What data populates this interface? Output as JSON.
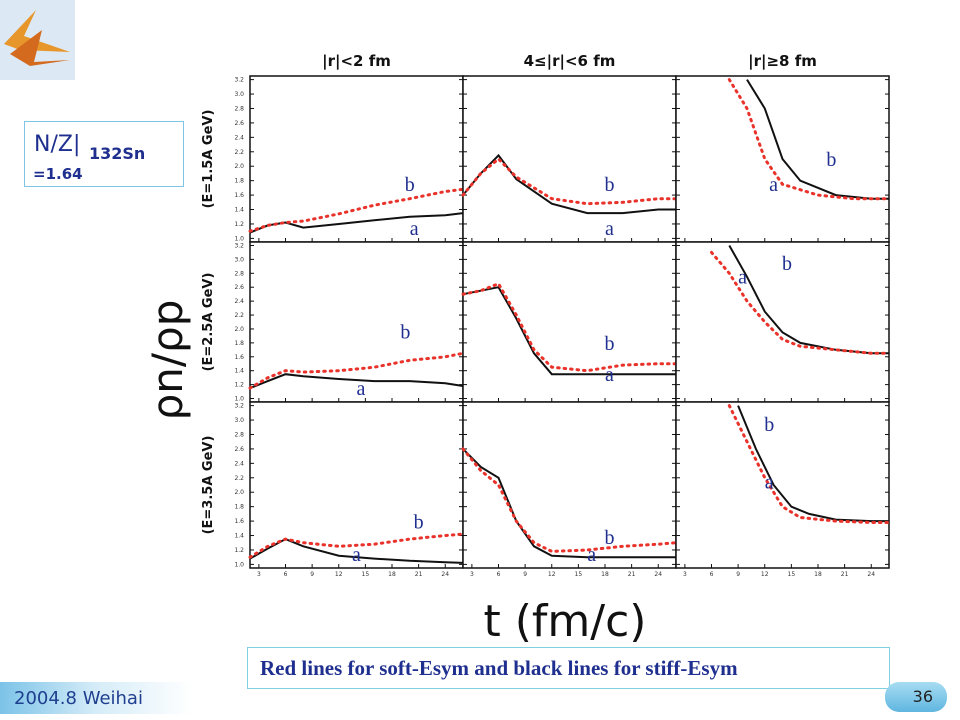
{
  "logo": {
    "name": "institution-logo"
  },
  "nz_box": {
    "main": "N/Z|",
    "sub": "132Sn",
    "value": "=1.64"
  },
  "caption": "Red lines for soft-Esym and black lines for stiff-Esym",
  "footer": {
    "left": "2004.8 Weihai",
    "page": "36"
  },
  "chart_data": {
    "type": "line",
    "ylabel": "ρn/ρp",
    "xlabel": "t (fm/c)",
    "column_titles": [
      "|r|<2 fm",
      "4≤|r|<6 fm",
      "|r|≥8 fm"
    ],
    "row_titles": [
      "(E=1.5A GeV)",
      "(E=2.5A GeV)",
      "(E=3.5A GeV)"
    ],
    "xticks": [
      3,
      6,
      9,
      12,
      15,
      18,
      21,
      24
    ],
    "yticks": [
      1.0,
      1.2,
      1.4,
      1.6,
      1.8,
      2.0,
      2.2,
      2.4,
      2.6,
      2.8,
      3.0,
      3.2
    ],
    "xlim": [
      2,
      26
    ],
    "ylim": [
      0.95,
      3.25
    ],
    "colors": {
      "soft": "#e8322a",
      "stiff": "#111111"
    },
    "legend": {
      "soft": "Red lines for soft-Esym",
      "stiff": "black lines for stiff-Esym"
    },
    "panels": [
      {
        "row": 0,
        "col": 0,
        "labels": [
          {
            "text": "b",
            "x": 20,
            "y": 1.66
          },
          {
            "text": "a",
            "x": 20.5,
            "y": 1.05
          }
        ],
        "soft": {
          "x": [
            2,
            4,
            6,
            8,
            12,
            16,
            20,
            24,
            26
          ],
          "y": [
            1.1,
            1.18,
            1.22,
            1.24,
            1.34,
            1.46,
            1.55,
            1.65,
            1.68
          ]
        },
        "stiff": {
          "x": [
            2,
            4,
            6,
            8,
            12,
            16,
            20,
            24,
            26
          ],
          "y": [
            1.08,
            1.18,
            1.22,
            1.15,
            1.2,
            1.25,
            1.3,
            1.32,
            1.35
          ]
        }
      },
      {
        "row": 0,
        "col": 1,
        "labels": [
          {
            "text": "b",
            "x": 18.5,
            "y": 1.66
          },
          {
            "text": "a",
            "x": 18.5,
            "y": 1.05
          }
        ],
        "soft": {
          "x": [
            2,
            4,
            6,
            8,
            12,
            16,
            20,
            24,
            26
          ],
          "y": [
            1.6,
            1.9,
            2.1,
            1.85,
            1.55,
            1.48,
            1.5,
            1.55,
            1.55
          ]
        },
        "stiff": {
          "x": [
            2,
            4,
            6,
            8,
            12,
            16,
            20,
            24,
            26
          ],
          "y": [
            1.6,
            1.9,
            2.15,
            1.82,
            1.48,
            1.35,
            1.35,
            1.4,
            1.4
          ]
        }
      },
      {
        "row": 0,
        "col": 2,
        "labels": [
          {
            "text": "b",
            "x": 19.5,
            "y": 2.0
          },
          {
            "text": "a",
            "x": 13,
            "y": 1.66
          }
        ],
        "soft": {
          "x": [
            8,
            10,
            12,
            14,
            18,
            22,
            26
          ],
          "y": [
            3.2,
            2.8,
            2.1,
            1.75,
            1.6,
            1.55,
            1.55
          ]
        },
        "stiff": {
          "x": [
            10,
            12,
            14,
            16,
            20,
            24,
            26
          ],
          "y": [
            3.2,
            2.8,
            2.1,
            1.8,
            1.6,
            1.55,
            1.55
          ]
        }
      },
      {
        "row": 1,
        "col": 0,
        "labels": [
          {
            "text": "b",
            "x": 19.5,
            "y": 1.86
          },
          {
            "text": "a",
            "x": 14.5,
            "y": 1.05
          }
        ],
        "soft": {
          "x": [
            2,
            4,
            6,
            8,
            12,
            16,
            20,
            24,
            26
          ],
          "y": [
            1.15,
            1.3,
            1.4,
            1.38,
            1.4,
            1.45,
            1.55,
            1.6,
            1.65
          ]
        },
        "stiff": {
          "x": [
            2,
            4,
            6,
            8,
            12,
            16,
            20,
            24,
            26
          ],
          "y": [
            1.15,
            1.25,
            1.35,
            1.32,
            1.28,
            1.25,
            1.25,
            1.22,
            1.18
          ]
        }
      },
      {
        "row": 1,
        "col": 1,
        "labels": [
          {
            "text": "b",
            "x": 18.5,
            "y": 1.7
          },
          {
            "text": "a",
            "x": 18.5,
            "y": 1.25
          }
        ],
        "soft": {
          "x": [
            2,
            4,
            6,
            8,
            10,
            12,
            16,
            20,
            24,
            26
          ],
          "y": [
            2.5,
            2.55,
            2.65,
            2.2,
            1.7,
            1.45,
            1.4,
            1.48,
            1.5,
            1.5
          ]
        },
        "stiff": {
          "x": [
            2,
            4,
            6,
            8,
            10,
            12,
            16,
            20,
            24,
            26
          ],
          "y": [
            2.5,
            2.55,
            2.6,
            2.15,
            1.65,
            1.35,
            1.35,
            1.35,
            1.35,
            1.35
          ]
        }
      },
      {
        "row": 1,
        "col": 2,
        "labels": [
          {
            "text": "b",
            "x": 14.5,
            "y": 2.85
          },
          {
            "text": "a",
            "x": 9.5,
            "y": 2.65
          }
        ],
        "soft": {
          "x": [
            6,
            8,
            10,
            12,
            14,
            16,
            20,
            24,
            26
          ],
          "y": [
            3.1,
            2.8,
            2.4,
            2.1,
            1.85,
            1.75,
            1.7,
            1.65,
            1.65
          ]
        },
        "stiff": {
          "x": [
            8,
            10,
            12,
            14,
            16,
            20,
            24,
            26
          ],
          "y": [
            3.2,
            2.75,
            2.25,
            1.95,
            1.8,
            1.7,
            1.65,
            1.65
          ]
        }
      },
      {
        "row": 2,
        "col": 0,
        "labels": [
          {
            "text": "b",
            "x": 21,
            "y": 1.5
          },
          {
            "text": "a",
            "x": 14,
            "y": 1.05
          }
        ],
        "soft": {
          "x": [
            2,
            4,
            6,
            8,
            12,
            16,
            20,
            24,
            26
          ],
          "y": [
            1.1,
            1.25,
            1.35,
            1.3,
            1.25,
            1.28,
            1.35,
            1.4,
            1.42
          ]
        },
        "stiff": {
          "x": [
            2,
            4,
            6,
            8,
            12,
            16,
            20,
            24,
            26
          ],
          "y": [
            1.08,
            1.22,
            1.35,
            1.25,
            1.12,
            1.08,
            1.05,
            1.03,
            1.02
          ]
        }
      },
      {
        "row": 2,
        "col": 1,
        "labels": [
          {
            "text": "b",
            "x": 18.5,
            "y": 1.28
          },
          {
            "text": "a",
            "x": 16.5,
            "y": 1.05
          }
        ],
        "soft": {
          "x": [
            2,
            4,
            6,
            8,
            10,
            12,
            16,
            20,
            24,
            26
          ],
          "y": [
            2.6,
            2.3,
            2.1,
            1.6,
            1.3,
            1.18,
            1.2,
            1.25,
            1.28,
            1.3
          ]
        },
        "stiff": {
          "x": [
            2,
            4,
            6,
            8,
            10,
            12,
            16,
            20,
            24,
            26
          ],
          "y": [
            2.6,
            2.35,
            2.2,
            1.6,
            1.25,
            1.12,
            1.1,
            1.1,
            1.1,
            1.1
          ]
        }
      },
      {
        "row": 2,
        "col": 2,
        "labels": [
          {
            "text": "b",
            "x": 12.5,
            "y": 2.85
          },
          {
            "text": "a",
            "x": 12.5,
            "y": 2.05
          }
        ],
        "soft": {
          "x": [
            8,
            10,
            12,
            14,
            16,
            20,
            24,
            26
          ],
          "y": [
            3.2,
            2.7,
            2.2,
            1.8,
            1.65,
            1.6,
            1.58,
            1.58
          ]
        },
        "stiff": {
          "x": [
            9,
            11,
            13,
            15,
            17,
            20,
            24,
            26
          ],
          "y": [
            3.2,
            2.6,
            2.1,
            1.8,
            1.7,
            1.62,
            1.6,
            1.6
          ]
        }
      }
    ]
  }
}
